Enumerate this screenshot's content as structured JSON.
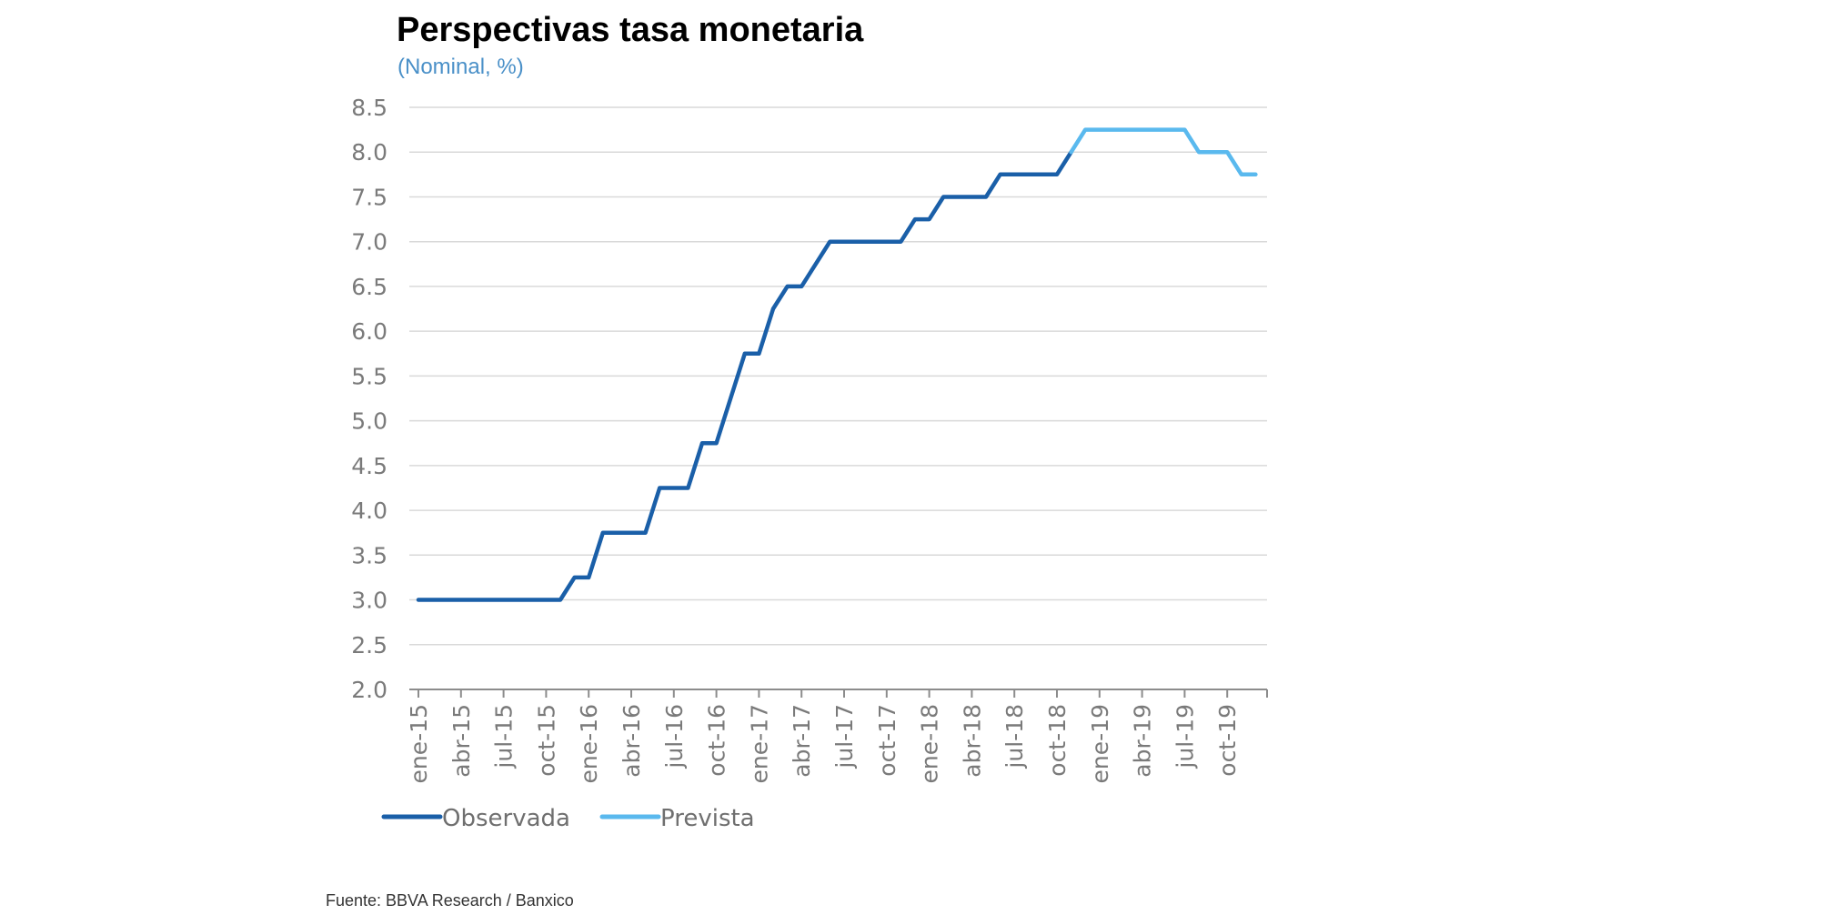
{
  "title": "Perspectivas tasa monetaria",
  "subtitle": "(Nominal, %)",
  "source": "Fuente: BBVA Research / Banxico",
  "chart_data": {
    "type": "line",
    "ylim": [
      2.0,
      8.5
    ],
    "y_ticks": [
      "8.5",
      "8.0",
      "7.5",
      "7.0",
      "6.5",
      "6.0",
      "5.5",
      "5.0",
      "4.5",
      "4.0",
      "3.5",
      "3.0",
      "2.5",
      "2.0"
    ],
    "x_ticks": [
      "ene-15",
      "abr-15",
      "jul-15",
      "oct-15",
      "ene-16",
      "abr-16",
      "jul-16",
      "oct-16",
      "ene-17",
      "abr-17",
      "jul-17",
      "oct-17",
      "ene-18",
      "abr-18",
      "jul-18",
      "oct-18",
      "ene-19",
      "abr-19",
      "jul-19",
      "oct-19"
    ],
    "grid": true,
    "legend_position": "bottom-left",
    "series": [
      {
        "name": "Observada",
        "color": "#1a5fa8",
        "x": [
          "ene-15",
          "feb-15",
          "mar-15",
          "abr-15",
          "may-15",
          "jun-15",
          "jul-15",
          "ago-15",
          "sep-15",
          "oct-15",
          "nov-15",
          "dic-15",
          "ene-16",
          "feb-16",
          "mar-16",
          "abr-16",
          "may-16",
          "jun-16",
          "jul-16",
          "ago-16",
          "sep-16",
          "oct-16",
          "nov-16",
          "dic-16",
          "ene-17",
          "feb-17",
          "mar-17",
          "abr-17",
          "may-17",
          "jun-17",
          "jul-17",
          "ago-17",
          "sep-17",
          "oct-17",
          "nov-17",
          "dic-17",
          "ene-18",
          "feb-18",
          "mar-18",
          "abr-18",
          "may-18",
          "jun-18",
          "jul-18",
          "ago-18",
          "sep-18",
          "oct-18",
          "nov-18"
        ],
        "values": [
          3.0,
          3.0,
          3.0,
          3.0,
          3.0,
          3.0,
          3.0,
          3.0,
          3.0,
          3.0,
          3.0,
          3.25,
          3.25,
          3.75,
          3.75,
          3.75,
          3.75,
          4.25,
          4.25,
          4.25,
          4.75,
          4.75,
          5.25,
          5.75,
          5.75,
          6.25,
          6.5,
          6.5,
          6.75,
          7.0,
          7.0,
          7.0,
          7.0,
          7.0,
          7.0,
          7.25,
          7.25,
          7.5,
          7.5,
          7.5,
          7.5,
          7.75,
          7.75,
          7.75,
          7.75,
          7.75,
          8.0
        ]
      },
      {
        "name": "Prevista",
        "color": "#5ab9ee",
        "x": [
          "nov-18",
          "dic-18",
          "ene-19",
          "feb-19",
          "mar-19",
          "abr-19",
          "may-19",
          "jun-19",
          "jul-19",
          "ago-19",
          "sep-19",
          "oct-19",
          "nov-19",
          "dic-19"
        ],
        "values": [
          8.0,
          8.25,
          8.25,
          8.25,
          8.25,
          8.25,
          8.25,
          8.25,
          8.25,
          8.0,
          8.0,
          8.0,
          7.75,
          7.75
        ]
      }
    ]
  }
}
